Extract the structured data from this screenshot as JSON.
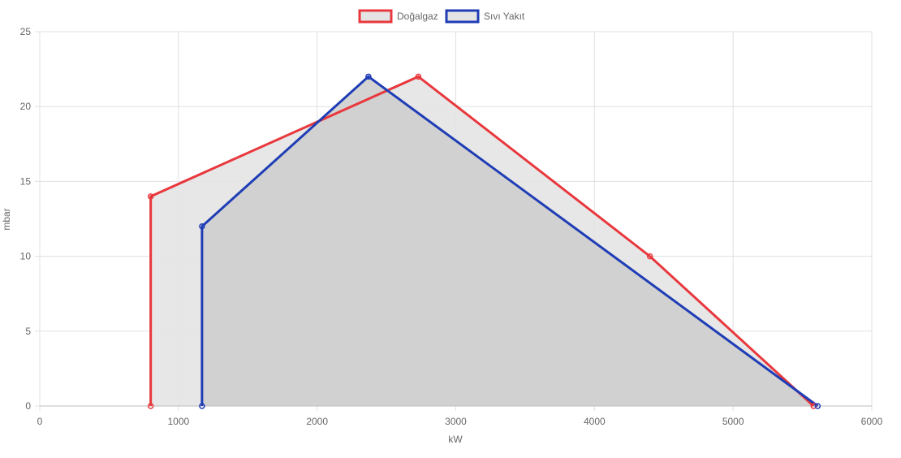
{
  "chart_data": {
    "type": "scatter",
    "xlabel": "kW",
    "ylabel": "mbar",
    "xlim": [
      0,
      6000
    ],
    "ylim": [
      0,
      25
    ],
    "x_ticks": [
      "0",
      "1000",
      "2000",
      "3000",
      "4000",
      "5000",
      "6000"
    ],
    "y_ticks": [
      "0",
      "5",
      "10",
      "15",
      "20",
      "25"
    ],
    "grid": true,
    "legend_position": "top",
    "series": [
      {
        "name": "Doğalgaz",
        "color": "#e8383d",
        "fill": "#e4e4e4",
        "points": [
          {
            "x": 800,
            "y": 0
          },
          {
            "x": 800,
            "y": 14
          },
          {
            "x": 2730,
            "y": 22
          },
          {
            "x": 4400,
            "y": 10
          },
          {
            "x": 5580,
            "y": 0
          }
        ]
      },
      {
        "name": "Sıvı Yakıt",
        "color": "#1f3db5",
        "fill": "#cecece",
        "points": [
          {
            "x": 1170,
            "y": 0
          },
          {
            "x": 1170,
            "y": 12
          },
          {
            "x": 2370,
            "y": 22
          },
          {
            "x": 5610,
            "y": 0
          }
        ]
      }
    ]
  }
}
